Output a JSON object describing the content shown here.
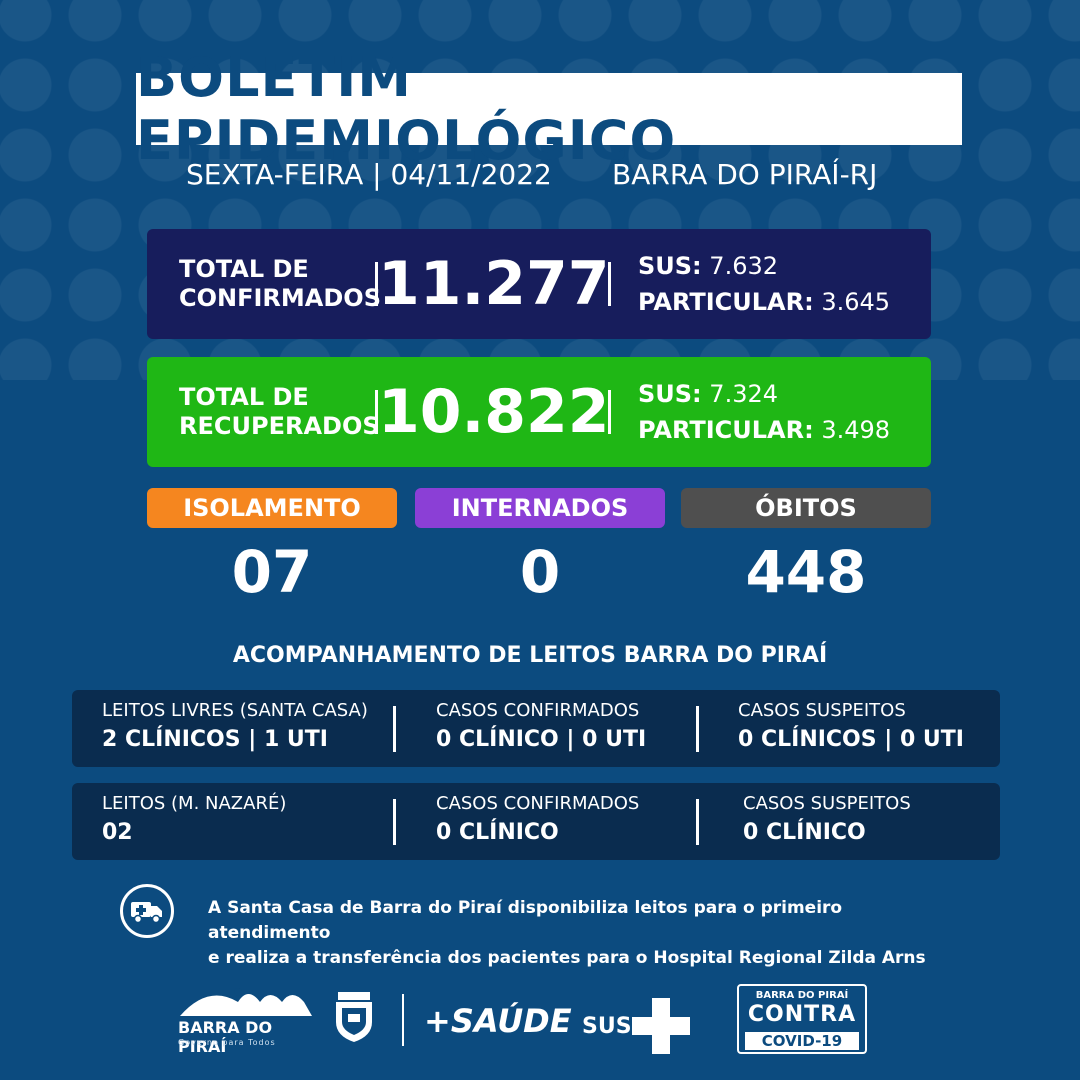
{
  "header": {
    "title": "BOLETIM EPIDEMIOLÓGICO",
    "date": "SEXTA-FEIRA | 04/11/2022",
    "location": "BARRA DO PIRAÍ-RJ"
  },
  "confirmed": {
    "label_line1": "TOTAL DE",
    "label_line2": "CONFIRMADOS",
    "value": "11.277",
    "sus_label": "SUS:",
    "sus_value": "7.632",
    "private_label": "PARTICULAR:",
    "private_value": "3.645",
    "color": "#171d5c"
  },
  "recovered": {
    "label_line1": "TOTAL DE",
    "label_line2": "RECUPERADOS",
    "value": "10.822",
    "sus_label": "SUS:",
    "sus_value": "7.324",
    "private_label": "PARTICULAR:",
    "private_value": "3.498",
    "color": "#1fb715"
  },
  "stats": {
    "isolation": {
      "label": "ISOLAMENTO",
      "value": "07",
      "color": "#f5861f"
    },
    "hospitalized": {
      "label": "INTERNADOS",
      "value": "0",
      "color": "#8b3fd6"
    },
    "deaths": {
      "label": "ÓBITOS",
      "value": "448",
      "color": "#4f4f4f"
    }
  },
  "beds": {
    "title": "ACOMPANHAMENTO DE LEITOS BARRA DO PIRAÍ",
    "row1": [
      {
        "caption": "LEITOS LIVRES (SANTA CASA)",
        "value": "2 CLÍNICOS | 1 UTI"
      },
      {
        "caption": "CASOS CONFIRMADOS",
        "value": "0 CLÍNICO | 0 UTI"
      },
      {
        "caption": "CASOS SUSPEITOS",
        "value": "0 CLÍNICOS | 0 UTI"
      }
    ],
    "row2": [
      {
        "caption": "LEITOS (M. NAZARÉ)",
        "value": "02"
      },
      {
        "caption": "CASOS CONFIRMADOS",
        "value": "0 CLÍNICO"
      },
      {
        "caption": "CASOS SUSPEITOS",
        "value": "0 CLÍNICO"
      }
    ]
  },
  "info": {
    "icon": "ambulance-icon",
    "line1": "A Santa Casa de Barra do Piraí disponibiliza leitos para o primeiro atendimento",
    "line2": "e realiza a transferência dos pacientes para o Hospital Regional Zilda Arns"
  },
  "footer": {
    "barra_name": "BARRA DO PIRAÍ",
    "barra_tag": "Governo para Todos",
    "saude": "+SAÚDE",
    "sus": "SUS",
    "covid_top": "BARRA DO PIRAÍ",
    "covid_mid": "CONTRA",
    "covid_bot": "COVID-19"
  },
  "colors": {
    "background": "#0c4b7f",
    "bed_card": "#0a2c4f"
  }
}
